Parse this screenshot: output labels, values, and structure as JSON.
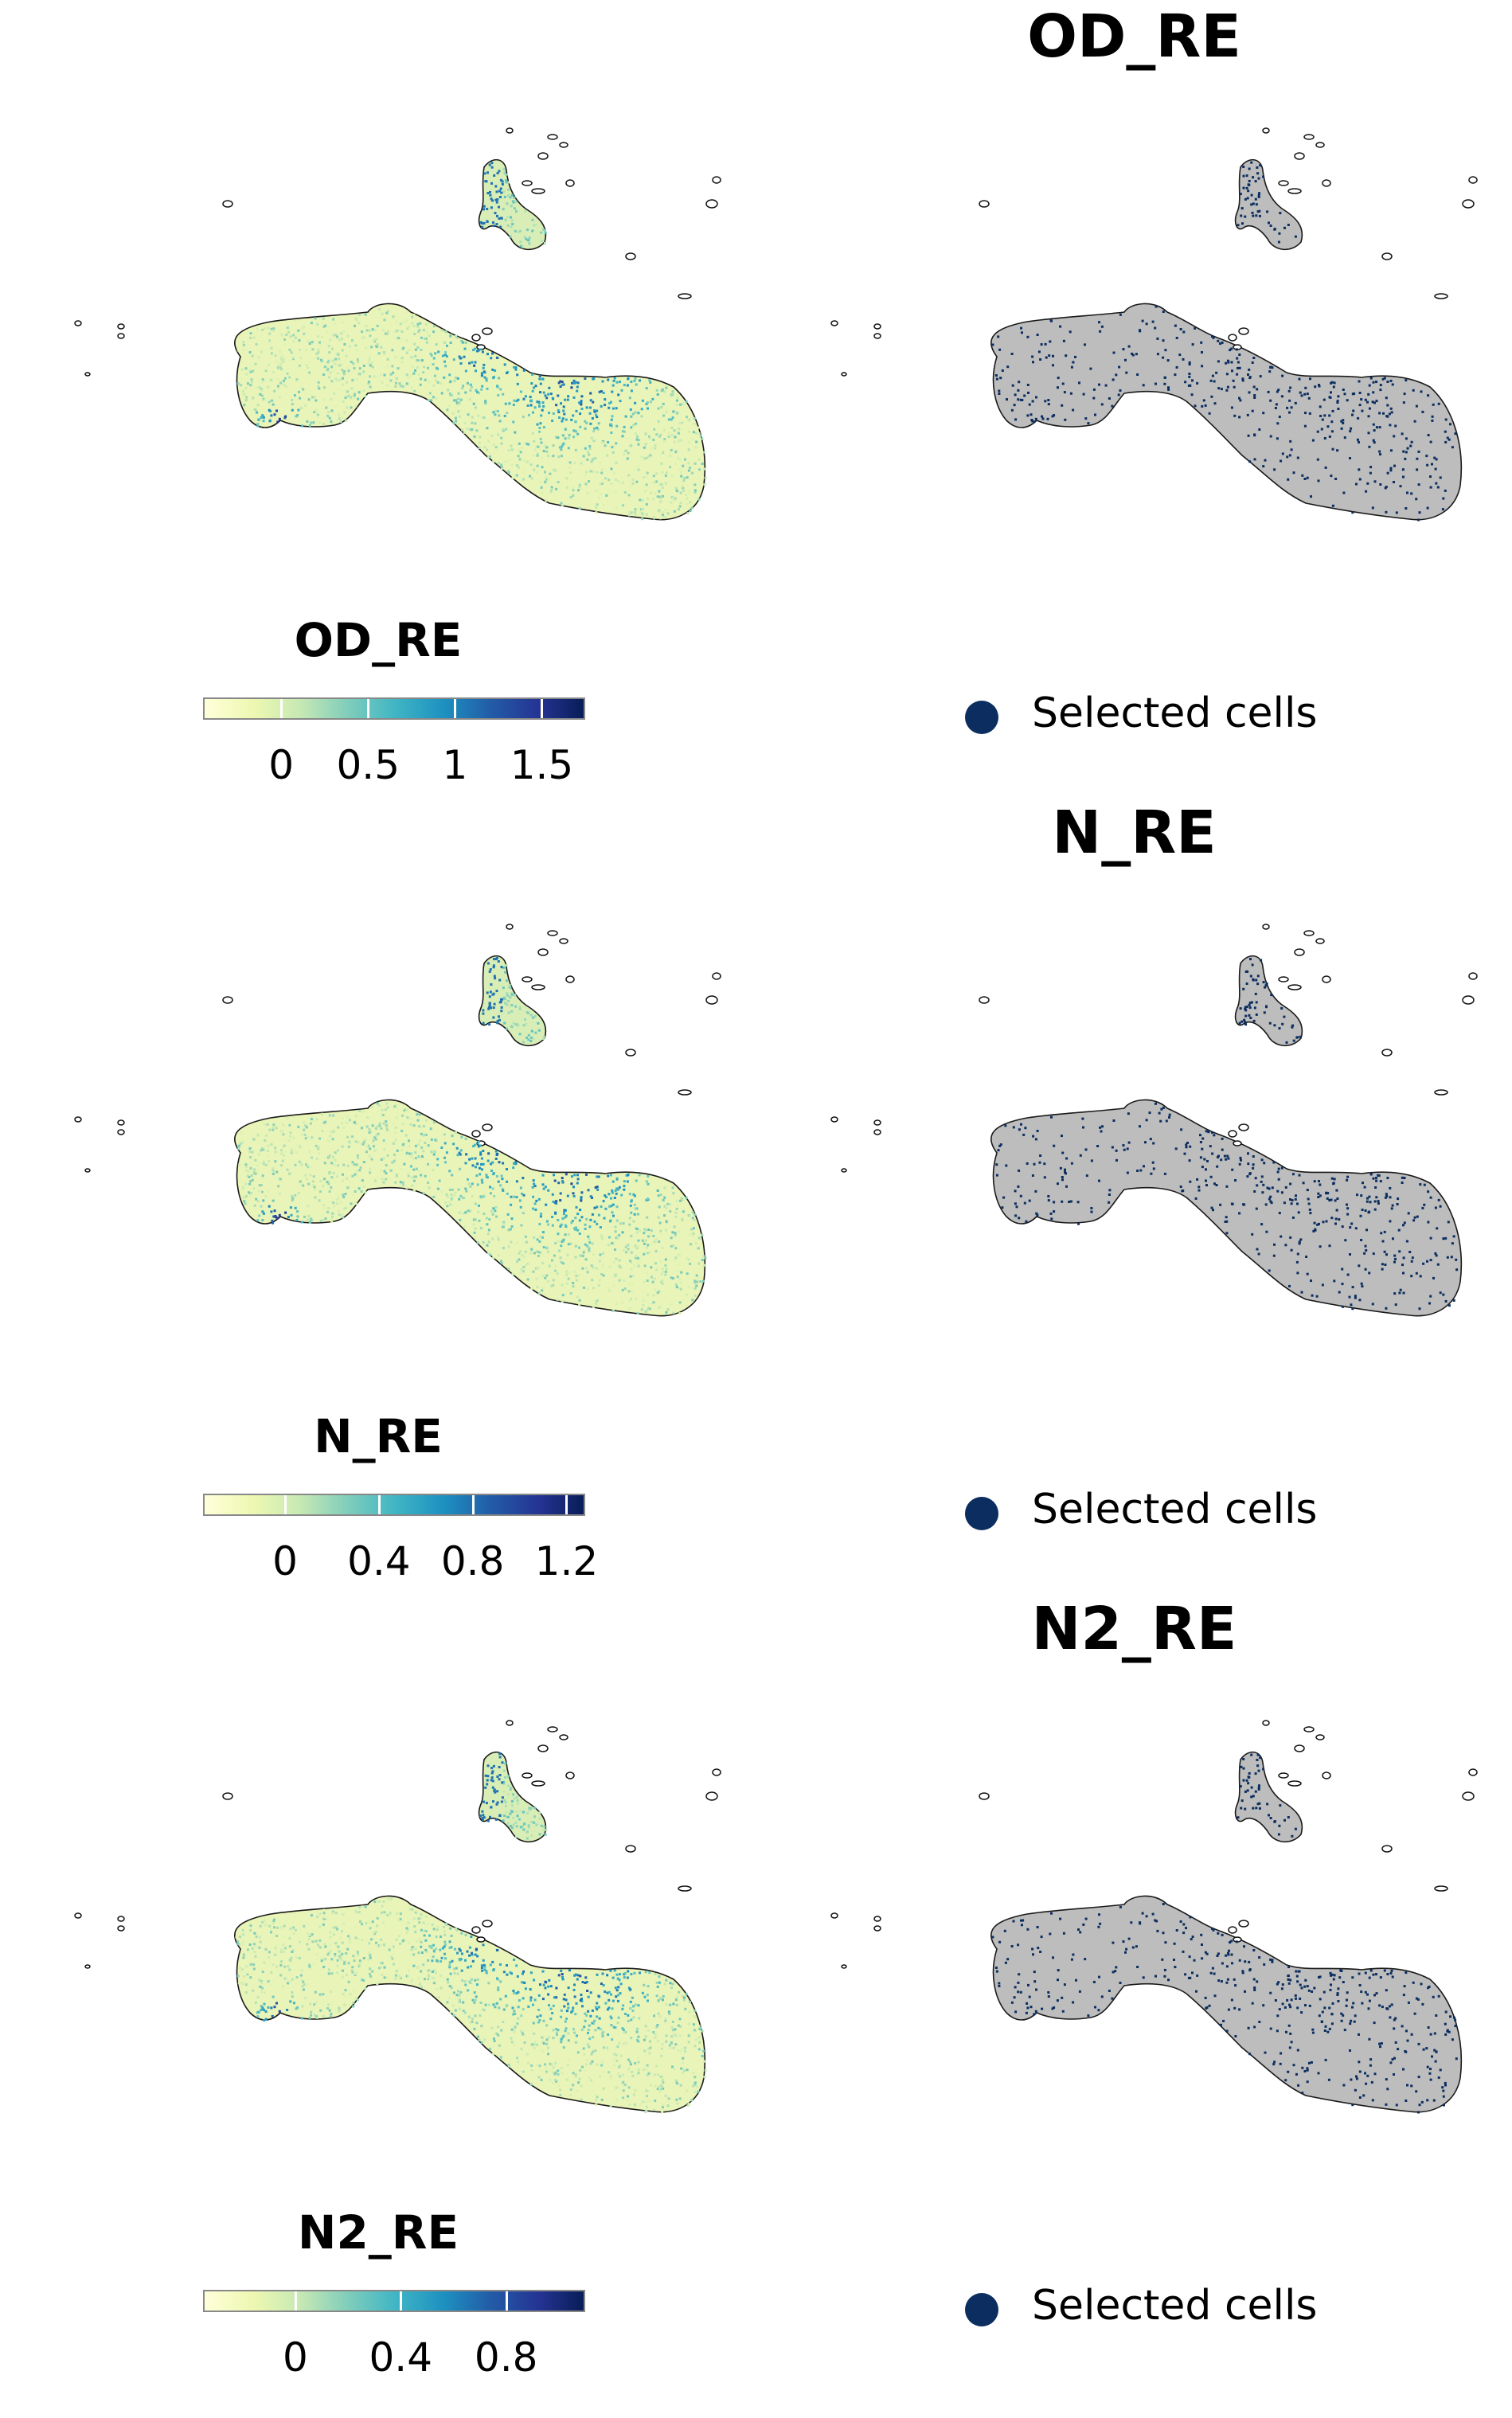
{
  "colors": {
    "selected": "#0b2d5f",
    "unselected": "#bdbdbd",
    "outline": "#1a1a1a"
  },
  "chart_data": [
    {
      "type": "scatter",
      "title": "",
      "legend_title": "OD_RE",
      "color_scale": "YlGnBu",
      "legend_ticks": [
        "0",
        "0.5",
        "1",
        "1.5"
      ],
      "tick_values": [
        0,
        0.5,
        1,
        1.5
      ],
      "range": [
        -0.45,
        1.75
      ]
    },
    {
      "type": "scatter",
      "title": "OD_RE",
      "legend_label": "Selected cells"
    },
    {
      "type": "scatter",
      "title": "",
      "legend_title": "N_RE",
      "color_scale": "YlGnBu",
      "legend_ticks": [
        "0",
        "0.4",
        "0.8",
        "1.2"
      ],
      "tick_values": [
        0,
        0.4,
        0.8,
        1.2
      ],
      "range": [
        -0.35,
        1.28
      ]
    },
    {
      "type": "scatter",
      "title": "N_RE",
      "legend_label": "Selected cells"
    },
    {
      "type": "scatter",
      "title": "",
      "legend_title": "N2_RE",
      "color_scale": "YlGnBu",
      "legend_ticks": [
        "0",
        "0.4",
        "0.8"
      ],
      "tick_values": [
        0,
        0.4,
        0.8
      ],
      "range": [
        -0.35,
        1.1
      ]
    },
    {
      "type": "scatter",
      "title": "N2_RE",
      "legend_label": "Selected cells"
    }
  ]
}
